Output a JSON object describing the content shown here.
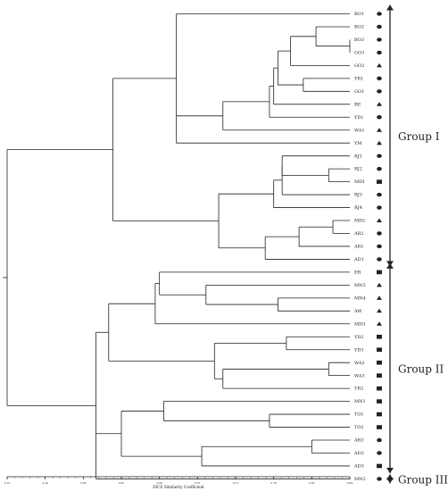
{
  "leaves": [
    {
      "label": "BO1",
      "marker": "ellipse"
    },
    {
      "label": "BO2",
      "marker": "ellipse"
    },
    {
      "label": "BO3",
      "marker": "ellipse"
    },
    {
      "label": "GO3",
      "marker": "ellipse"
    },
    {
      "label": "GO2",
      "marker": "triangle"
    },
    {
      "label": "TR1",
      "marker": "ellipse"
    },
    {
      "label": "GO1",
      "marker": "ellipse"
    },
    {
      "label": "BE",
      "marker": "triangle"
    },
    {
      "label": "YD1",
      "marker": "ellipse"
    },
    {
      "label": "WA1",
      "marker": "triangle"
    },
    {
      "label": "YM",
      "marker": "triangle"
    },
    {
      "label": "RJ1",
      "marker": "ellipse"
    },
    {
      "label": "RJ2",
      "marker": "ellipse"
    },
    {
      "label": "MD1",
      "marker": "square"
    },
    {
      "label": "RJ3",
      "marker": "ellipse"
    },
    {
      "label": "RJ4",
      "marker": "ellipse"
    },
    {
      "label": "MD2",
      "marker": "triangle"
    },
    {
      "label": "AR2",
      "marker": "ellipse"
    },
    {
      "label": "AR1",
      "marker": "ellipse"
    },
    {
      "label": "AD1",
      "marker": "ellipse"
    },
    {
      "label": "ER",
      "marker": "square"
    },
    {
      "label": "MN3",
      "marker": "triangle"
    },
    {
      "label": "MN4",
      "marker": "triangle"
    },
    {
      "label": "AW",
      "marker": "triangle"
    },
    {
      "label": "MD3",
      "marker": "triangle"
    },
    {
      "label": "YD2",
      "marker": "square"
    },
    {
      "label": "YD3",
      "marker": "square"
    },
    {
      "label": "WA2",
      "marker": "square"
    },
    {
      "label": "WA3",
      "marker": "square"
    },
    {
      "label": "TR2",
      "marker": "square"
    },
    {
      "label": "MN1",
      "marker": "square"
    },
    {
      "label": "TO1",
      "marker": "square"
    },
    {
      "label": "TO2",
      "marker": "square"
    },
    {
      "label": "AR3",
      "marker": "ellipse"
    },
    {
      "label": "AD2",
      "marker": "ellipse"
    },
    {
      "label": "AD3",
      "marker": "square"
    },
    {
      "label": "MN2",
      "marker": "ellipse"
    }
  ],
  "tree": {
    "sim": 0.19,
    "children": [
      {
        "sim": 0.44,
        "children": [
          {
            "sim": 0.59,
            "children": [
              {
                "leaf": 0
              },
              {
                "sim": 0.7,
                "children": [
                  {
                    "sim": 0.81,
                    "children": [
                      {
                        "sim": 0.82,
                        "children": [
                          {
                            "sim": 0.83,
                            "children": [
                              {
                                "sim": 0.86,
                                "children": [
                                  {
                                    "sim": 0.92,
                                    "children": [
                                      {
                                        "leaf": 1
                                      },
                                      {
                                        "sim": 1.0,
                                        "children": [
                                          {
                                            "leaf": 2
                                          },
                                          {
                                            "leaf": 3
                                          }
                                        ]
                                      }
                                    ]
                                  },
                                  {
                                    "leaf": 4
                                  }
                                ]
                              },
                              {
                                "sim": 0.89,
                                "children": [
                                  {
                                    "leaf": 5
                                  },
                                  {
                                    "leaf": 6
                                  }
                                ]
                              }
                            ]
                          },
                          {
                            "leaf": 7
                          }
                        ]
                      },
                      {
                        "leaf": 8
                      }
                    ]
                  },
                  {
                    "leaf": 9
                  }
                ]
              },
              {
                "leaf": 10
              }
            ]
          },
          {
            "sim": 0.69,
            "children": [
              {
                "sim": 0.82,
                "children": [
                  {
                    "sim": 0.84,
                    "children": [
                      {
                        "sim": 0.84,
                        "children": [
                          {
                            "leaf": 11
                          },
                          {
                            "sim": 0.95,
                            "children": [
                              {
                                "leaf": 12
                              },
                              {
                                "leaf": 13
                              }
                            ]
                          }
                        ]
                      },
                      {
                        "leaf": 14
                      }
                    ]
                  },
                  {
                    "leaf": 15
                  }
                ]
              },
              {
                "sim": 0.8,
                "children": [
                  {
                    "sim": 0.88,
                    "children": [
                      {
                        "sim": 0.96,
                        "children": [
                          {
                            "leaf": 16
                          },
                          {
                            "leaf": 17
                          }
                        ]
                      },
                      {
                        "leaf": 18
                      }
                    ]
                  },
                  {
                    "leaf": 19
                  }
                ]
              }
            ]
          }
        ]
      },
      {
        "sim": 0.4,
        "children": [
          {
            "sim": 0.43,
            "children": [
              {
                "sim": 0.54,
                "children": [
                  {
                    "sim": 0.55,
                    "children": [
                      {
                        "leaf": 20
                      },
                      {
                        "sim": 0.66,
                        "children": [
                          {
                            "leaf": 21
                          },
                          {
                            "sim": 0.83,
                            "children": [
                              {
                                "leaf": 22
                              },
                              {
                                "leaf": 23
                              }
                            ]
                          }
                        ]
                      }
                    ]
                  },
                  {
                    "leaf": 24
                  }
                ]
              },
              {
                "sim": 0.58,
                "children": [
                  {
                    "sim": 0.68,
                    "children": [
                      {
                        "sim": 0.85,
                        "children": [
                          {
                            "leaf": 25
                          },
                          {
                            "leaf": 26
                          }
                        ]
                      },
                      {
                        "sim": 0.7,
                        "children": [
                          {
                            "sim": 0.95,
                            "children": [
                              {
                                "leaf": 27
                              },
                              {
                                "leaf": 28
                              }
                            ]
                          },
                          {
                            "leaf": 29
                          }
                        ]
                      }
                    ]
                  }
                ]
              }
            ]
          },
          {
            "sim": 0.46,
            "children": [
              {
                "sim": 0.56,
                "children": [
                  {
                    "leaf": 30
                  },
                  {
                    "sim": 0.81,
                    "children": [
                      {
                        "leaf": 31
                      },
                      {
                        "leaf": 32
                      }
                    ]
                  }
                ]
              },
              {
                "sim": 0.65,
                "children": [
                  {
                    "sim": 0.91,
                    "children": [
                      {
                        "leaf": 33
                      },
                      {
                        "leaf": 34
                      }
                    ]
                  },
                  {
                    "leaf": 35
                  }
                ]
              }
            ]
          },
          {
            "leaf": 36
          }
        ]
      }
    ]
  },
  "groups": [
    {
      "label": "Group I",
      "from": 0,
      "to": 19
    },
    {
      "label": "Group II",
      "from": 20,
      "to": 35
    },
    {
      "label": "Group III",
      "from": 36,
      "to": 36
    }
  ],
  "axis": {
    "title": "DICE Similarity Coefficient",
    "min": 0.19,
    "max": 1.0,
    "ticks": [
      "0.19",
      "0.44",
      "0.60",
      "0.65",
      "0.69",
      "0.67",
      "0.72",
      "0.78",
      "0.83",
      "0.89"
    ]
  },
  "colors": {
    "line": "#222222",
    "text": "#222222",
    "background": "#ffffff"
  }
}
